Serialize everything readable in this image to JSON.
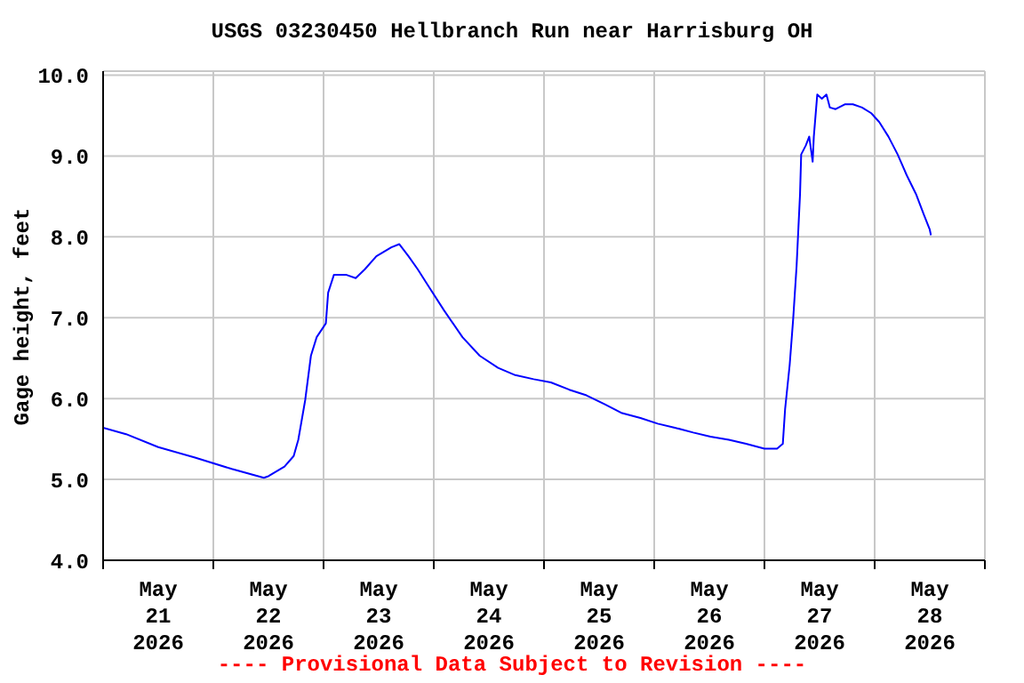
{
  "chart_data": {
    "type": "line",
    "title": "USGS 03230450 Hellbranch Run near Harrisburg OH",
    "ylabel": "Gage height, feet",
    "annotations": [
      "---- Provisional Data Subject to Revision ----"
    ],
    "x": [
      "2026-05-21T00:00",
      "2026-05-21T05:00",
      "2026-05-21T12:00",
      "2026-05-21T20:00",
      "2026-05-22T04:00",
      "2026-05-22T11:00",
      "2026-05-22T12:00",
      "2026-05-22T15:30",
      "2026-05-22T17:30",
      "2026-05-22T18:30",
      "2026-05-22T20:00",
      "2026-05-22T21:15",
      "2026-05-22T22:30",
      "2026-05-23T00:30",
      "2026-05-23T01:00",
      "2026-05-23T02:15",
      "2026-05-23T05:00",
      "2026-05-23T07:00",
      "2026-05-23T09:00",
      "2026-05-23T11:30",
      "2026-05-23T14:45",
      "2026-05-23T16:30",
      "2026-05-23T18:30",
      "2026-05-23T20:30",
      "2026-05-23T22:30",
      "2026-05-24T02:15",
      "2026-05-24T06:15",
      "2026-05-24T10:00",
      "2026-05-24T14:00",
      "2026-05-24T17:45",
      "2026-05-24T21:45",
      "2026-05-25T01:30",
      "2026-05-25T05:30",
      "2026-05-25T09:15",
      "2026-05-25T13:15",
      "2026-05-25T17:00",
      "2026-05-25T21:00",
      "2026-05-26T00:45",
      "2026-05-26T04:30",
      "2026-05-26T08:30",
      "2026-05-26T12:15",
      "2026-05-26T16:15",
      "2026-05-26T20:00",
      "2026-05-27T00:00",
      "2026-05-27T02:45",
      "2026-05-27T04:00",
      "2026-05-27T04:30",
      "2026-05-27T05:30",
      "2026-05-27T06:15",
      "2026-05-27T07:00",
      "2026-05-27T07:45",
      "2026-05-27T08:00",
      "2026-05-27T09:00",
      "2026-05-27T09:45",
      "2026-05-27T10:30",
      "2026-05-27T10:45",
      "2026-05-27T11:30",
      "2026-05-27T12:30",
      "2026-05-27T13:30",
      "2026-05-27T14:15",
      "2026-05-27T15:30",
      "2026-05-27T17:30",
      "2026-05-27T19:15",
      "2026-05-27T21:15",
      "2026-05-27T23:15",
      "2026-05-28T01:00",
      "2026-05-28T03:00",
      "2026-05-28T05:00",
      "2026-05-28T07:00",
      "2026-05-28T09:00",
      "2026-05-28T10:45",
      "2026-05-28T12:00",
      "2026-05-28T12:15"
    ],
    "series": [
      {
        "color": "#0000ff",
        "values": [
          5.64,
          5.56,
          5.4,
          5.27,
          5.13,
          5.02,
          5.04,
          5.16,
          5.29,
          5.49,
          5.98,
          6.53,
          6.76,
          6.93,
          7.31,
          7.53,
          7.53,
          7.49,
          7.6,
          7.76,
          7.87,
          7.91,
          7.76,
          7.6,
          7.42,
          7.09,
          6.76,
          6.53,
          6.38,
          6.29,
          6.24,
          6.2,
          6.11,
          6.04,
          5.93,
          5.82,
          5.76,
          5.69,
          5.64,
          5.58,
          5.53,
          5.49,
          5.44,
          5.38,
          5.38,
          5.44,
          5.87,
          6.42,
          6.98,
          7.64,
          8.53,
          9.02,
          9.13,
          9.24,
          8.93,
          9.24,
          9.76,
          9.71,
          9.76,
          9.6,
          9.58,
          9.64,
          9.64,
          9.6,
          9.53,
          9.42,
          9.24,
          9.02,
          8.76,
          8.53,
          8.27,
          8.09,
          8.02
        ]
      }
    ],
    "xlim": [
      "2026-05-21T00:00",
      "2026-05-29T00:00"
    ],
    "xticks": [
      {
        "value": "2026-05-21T00:00",
        "label": null
      },
      {
        "value": "2026-05-21T12:00",
        "label": "May 21 2026"
      },
      {
        "value": "2026-05-22T00:00",
        "label": null
      },
      {
        "value": "2026-05-22T12:00",
        "label": "May 22 2026"
      },
      {
        "value": "2026-05-23T00:00",
        "label": null
      },
      {
        "value": "2026-05-23T12:00",
        "label": "May 23 2026"
      },
      {
        "value": "2026-05-24T00:00",
        "label": null
      },
      {
        "value": "2026-05-24T12:00",
        "label": "May 24 2026"
      },
      {
        "value": "2026-05-25T00:00",
        "label": null
      },
      {
        "value": "2026-05-25T12:00",
        "label": "May 25 2026"
      },
      {
        "value": "2026-05-26T00:00",
        "label": null
      },
      {
        "value": "2026-05-26T12:00",
        "label": "May 26 2026"
      },
      {
        "value": "2026-05-27T00:00",
        "label": null
      },
      {
        "value": "2026-05-27T12:00",
        "label": "May 27 2026"
      },
      {
        "value": "2026-05-28T00:00",
        "label": null
      },
      {
        "value": "2026-05-28T12:00",
        "label": "May 28 2026"
      },
      {
        "value": "2026-05-29T00:00",
        "label": null
      }
    ],
    "ylim": [
      4,
      10.05
    ],
    "yticks": [
      {
        "value": 4,
        "label": "4.0"
      },
      {
        "value": 5,
        "label": "5.0"
      },
      {
        "value": 6,
        "label": "6.0"
      },
      {
        "value": 7,
        "label": "7.0"
      },
      {
        "value": 8,
        "label": "8.0"
      },
      {
        "value": 9,
        "label": "9.0"
      },
      {
        "value": 10,
        "label": "10.0"
      }
    ],
    "grid": true,
    "line_style": "solid",
    "marker": "none"
  }
}
